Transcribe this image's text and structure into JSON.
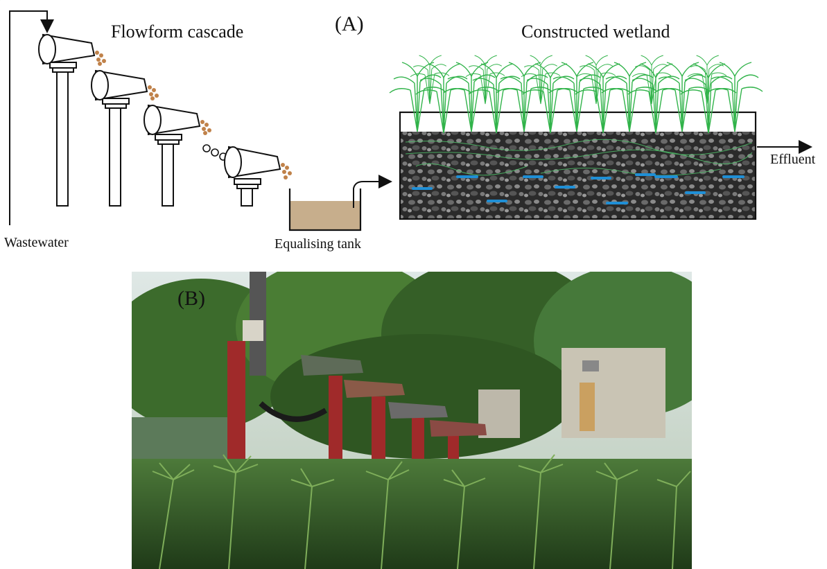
{
  "panel_a": {
    "panel_label": "(A)",
    "titles": {
      "flowform": "Flowform cascade",
      "wetland": "Constructed wetland"
    },
    "labels": {
      "wastewater": "Wastewater",
      "tank": "Equalising tank",
      "effluent": "Effluent"
    }
  },
  "panel_b": {
    "panel_label": "(B)"
  },
  "colors": {
    "water": "#c7ae8c",
    "flow_drops": "#c0824a",
    "plant": "#31b34a",
    "gravel": "#2f2f2f",
    "pipes": "#1f8fd6",
    "flowform_pillar": "#a02a2a",
    "foliage": "#3c6b2c"
  }
}
